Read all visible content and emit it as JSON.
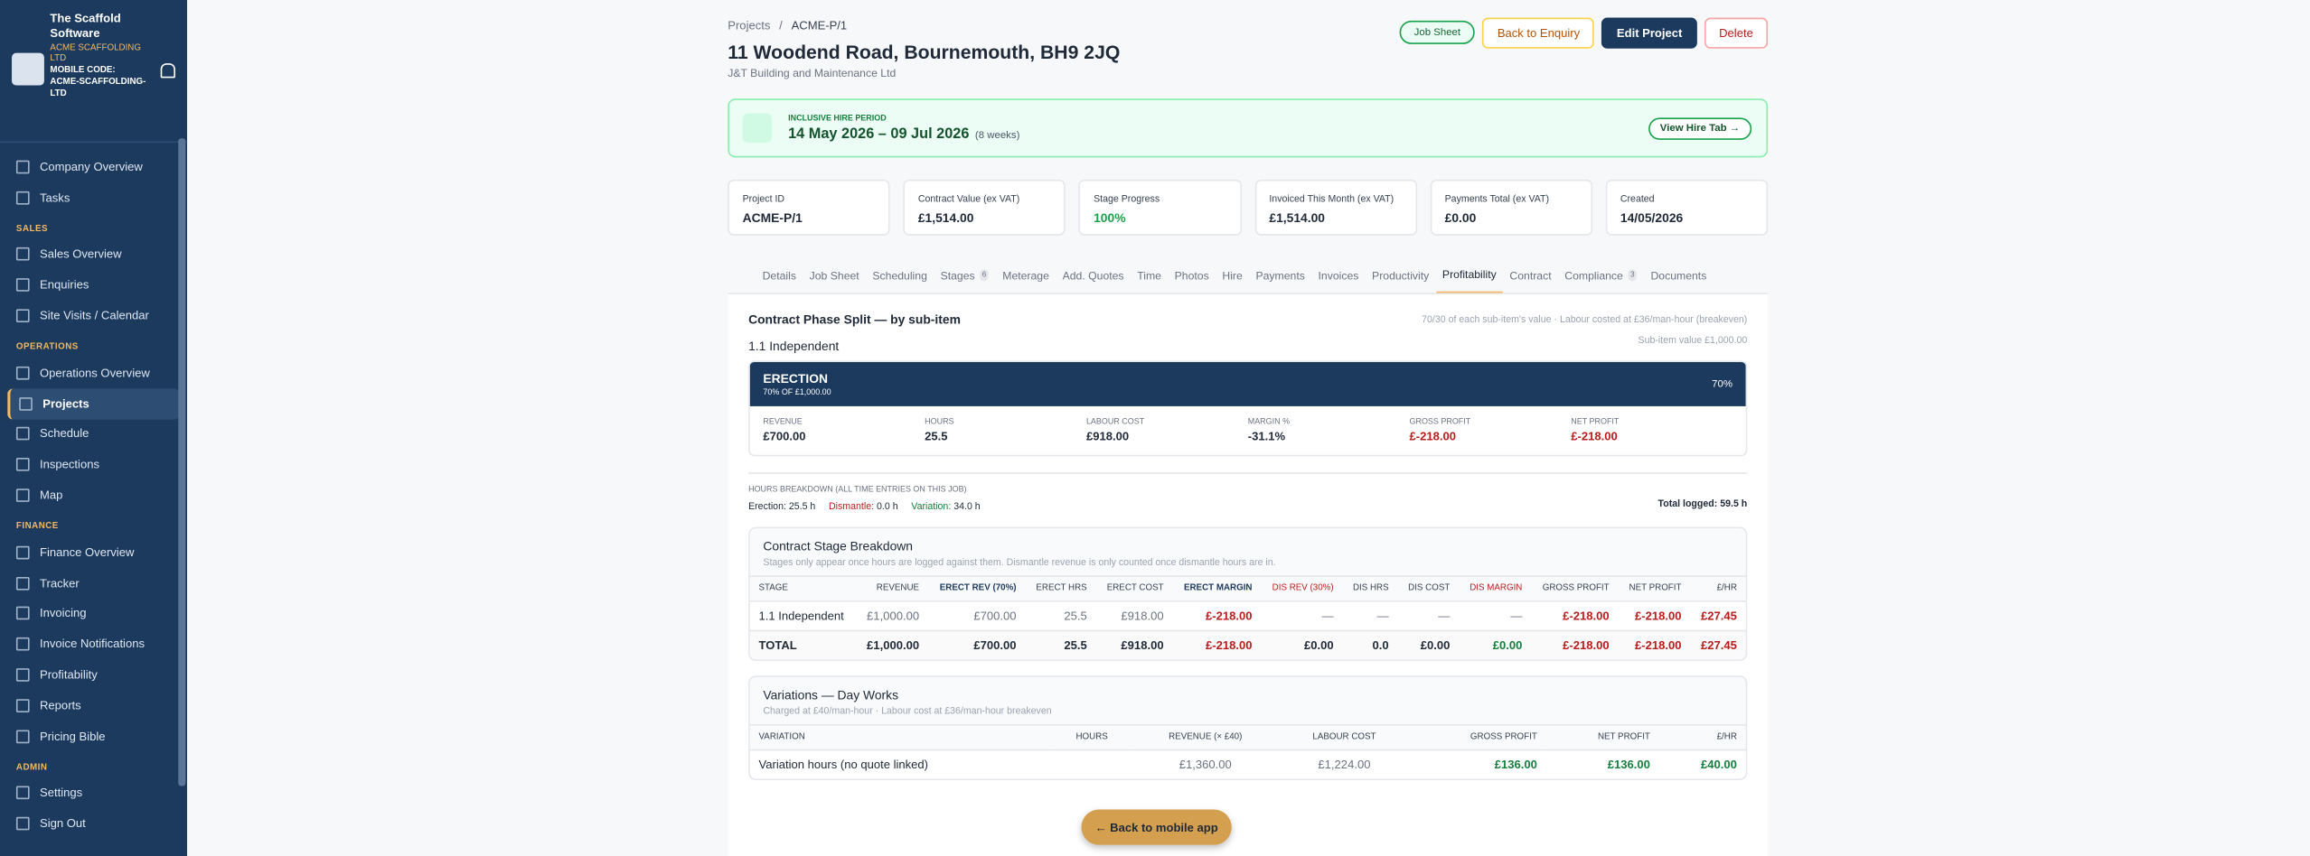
{
  "sidebar": {
    "brand": "The Scaffold Software",
    "company": "ACME SCAFFOLDING LTD",
    "mobile_code_label": "MOBILE CODE:",
    "mobile_code": "ACME-SCAFFOLDING-LTD",
    "nav_top": [
      "Company Overview",
      "Tasks"
    ],
    "sections": [
      {
        "title": "SALES",
        "items": [
          "Sales Overview",
          "Enquiries",
          "Site Visits / Calendar"
        ]
      },
      {
        "title": "OPERATIONS",
        "items": [
          "Operations Overview",
          "Projects",
          "Schedule",
          "Inspections",
          "Map"
        ]
      },
      {
        "title": "FINANCE",
        "items": [
          "Finance Overview",
          "Tracker",
          "Invoicing",
          "Invoice Notifications",
          "Profitability",
          "Reports",
          "Pricing Bible"
        ]
      },
      {
        "title": "ADMIN",
        "items": [
          "Settings",
          "Sign Out"
        ]
      }
    ]
  },
  "header": {
    "breadcrumb": [
      "Projects",
      "/",
      "ACME-P/1"
    ],
    "title": "11 Woodend Road, Bournemouth, BH9 2JQ",
    "client": "J&T Building and Maintenance Ltd",
    "buttons": [
      "Job Sheet",
      "Back to Enquiry",
      "Edit Project",
      "Delete"
    ]
  },
  "hire": {
    "label": "INCLUSIVE HIRE PERIOD",
    "dates": "14 May 2026 – 09 Jul 2026",
    "weeks": "(8 weeks)",
    "button": "View Hire Tab →"
  },
  "stats": [
    {
      "label": "Project ID",
      "value": "ACME-P/1"
    },
    {
      "label": "Contract Value (ex VAT)",
      "value": "£1,514.00"
    },
    {
      "label": "Stage Progress",
      "value": "100%"
    },
    {
      "label": "Invoiced This Month (ex VAT)",
      "value": "£1,514.00"
    },
    {
      "label": "Payments Total (ex VAT)",
      "value": "£0.00"
    },
    {
      "label": "Created",
      "value": "14/05/2026"
    }
  ],
  "tabs": [
    {
      "label": "Details"
    },
    {
      "label": "Job Sheet"
    },
    {
      "label": "Scheduling"
    },
    {
      "label": "Stages",
      "badge": "6"
    },
    {
      "label": "Meterage"
    },
    {
      "label": "Add. Quotes"
    },
    {
      "label": "Time"
    },
    {
      "label": "Photos"
    },
    {
      "label": "Hire"
    },
    {
      "label": "Payments"
    },
    {
      "label": "Invoices"
    },
    {
      "label": "Productivity"
    },
    {
      "label": "Profitability"
    },
    {
      "label": "Contract"
    },
    {
      "label": "Compliance",
      "badge": "3"
    },
    {
      "label": "Documents"
    }
  ],
  "split": {
    "title": "Contract Phase Split — by sub-item",
    "note": "70/30 of each sub-item's value · Labour costed at £36/man-hour (breakeven)",
    "item": "1.1 Independent",
    "item_value": "Sub-item value £1,000.00",
    "phase": {
      "name": "ERECTION",
      "sub": "70% OF £1,000.00",
      "pct": "70%",
      "metrics": [
        {
          "label": "REVENUE",
          "value": "£700.00"
        },
        {
          "label": "HOURS",
          "value": "25.5"
        },
        {
          "label": "LABOUR COST",
          "value": "£918.00"
        },
        {
          "label": "MARGIN %",
          "value": "-31.1%"
        },
        {
          "label": "GROSS PROFIT",
          "value": "£-218.00"
        },
        {
          "label": "NET PROFIT",
          "value": "£-218.00"
        }
      ]
    }
  },
  "hours": {
    "title": "HOURS BREAKDOWN (ALL TIME ENTRIES ON THIS JOB)",
    "items": [
      {
        "label": "Erection:",
        "value": "25.5 h"
      },
      {
        "label": "Dismantle:",
        "value": "0.0 h"
      },
      {
        "label": "Variation:",
        "value": "34.0 h"
      }
    ],
    "total_label": "Total logged:",
    "total": "59.5 h"
  },
  "stage_table": {
    "title": "Contract Stage Breakdown",
    "note": "Stages only appear once hours are logged against them. Dismantle revenue is only counted once dismantle hours are in.",
    "columns": [
      "STAGE",
      "REVENUE",
      "ERECT REV (70%)",
      "ERECT HRS",
      "ERECT COST",
      "ERECT MARGIN",
      "DIS REV (30%)",
      "DIS HRS",
      "DIS COST",
      "DIS MARGIN",
      "GROSS PROFIT",
      "NET PROFIT",
      "£/HR"
    ],
    "rows": [
      [
        "1.1 Independent",
        "£1,000.00",
        "£700.00",
        "25.5",
        "£918.00",
        "£-218.00",
        "—",
        "—",
        "—",
        "—",
        "£-218.00",
        "£-218.00",
        "£27.45"
      ],
      [
        "TOTAL",
        "£1,000.00",
        "£700.00",
        "25.5",
        "£918.00",
        "£-218.00",
        "£0.00",
        "0.0",
        "£0.00",
        "£0.00",
        "£-218.00",
        "£-218.00",
        "£27.45"
      ]
    ]
  },
  "variations": {
    "title": "Variations — Day Works",
    "note": "Charged at £40/man-hour · Labour cost at £36/man-hour breakeven",
    "columns": [
      "VARIATION",
      "HOURS",
      "REVENUE (× £40)",
      "LABOUR COST",
      "GROSS PROFIT",
      "NET PROFIT",
      "£/HR"
    ],
    "rows": [
      [
        "Variation hours (no quote linked)",
        "",
        "£1,360.00",
        "£1,224.00",
        "£136.00",
        "£136.00",
        "£40.00"
      ]
    ]
  },
  "floating_button": "← Back to mobile app"
}
